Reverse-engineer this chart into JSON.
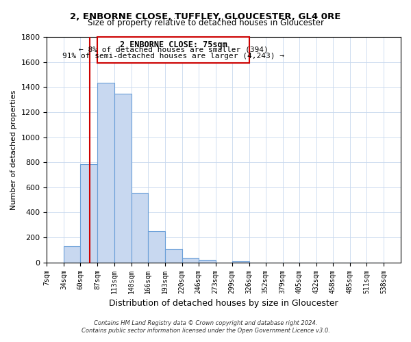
{
  "title": "2, ENBORNE CLOSE, TUFFLEY, GLOUCESTER, GL4 0RE",
  "subtitle": "Size of property relative to detached houses in Gloucester",
  "xlabel": "Distribution of detached houses by size in Gloucester",
  "ylabel": "Number of detached properties",
  "bin_labels": [
    "7sqm",
    "34sqm",
    "60sqm",
    "87sqm",
    "113sqm",
    "140sqm",
    "166sqm",
    "193sqm",
    "220sqm",
    "246sqm",
    "273sqm",
    "299sqm",
    "326sqm",
    "352sqm",
    "379sqm",
    "405sqm",
    "432sqm",
    "458sqm",
    "485sqm",
    "511sqm",
    "538sqm"
  ],
  "bar_values": [
    0,
    130,
    785,
    1435,
    1345,
    555,
    250,
    110,
    35,
    20,
    0,
    10,
    0,
    0,
    0,
    0,
    0,
    0,
    0,
    0
  ],
  "bar_color": "#c8d8f0",
  "bar_edge_color": "#6a9fd8",
  "marker_line_color": "#cc0000",
  "annotation_title": "2 ENBORNE CLOSE: 75sqm",
  "annotation_line1": "← 8% of detached houses are smaller (394)",
  "annotation_line2": "91% of semi-detached houses are larger (4,243) →",
  "annotation_box_color": "#ffffff",
  "annotation_box_edge": "#cc0000",
  "ylim": [
    0,
    1800
  ],
  "yticks": [
    0,
    200,
    400,
    600,
    800,
    1000,
    1200,
    1400,
    1600,
    1800
  ],
  "footer1": "Contains HM Land Registry data © Crown copyright and database right 2024.",
  "footer2": "Contains public sector information licensed under the Open Government Licence v3.0.",
  "bin_edges": [
    7,
    34,
    60,
    87,
    113,
    140,
    166,
    193,
    220,
    246,
    273,
    299,
    326,
    352,
    379,
    405,
    432,
    458,
    485,
    511,
    538
  ]
}
